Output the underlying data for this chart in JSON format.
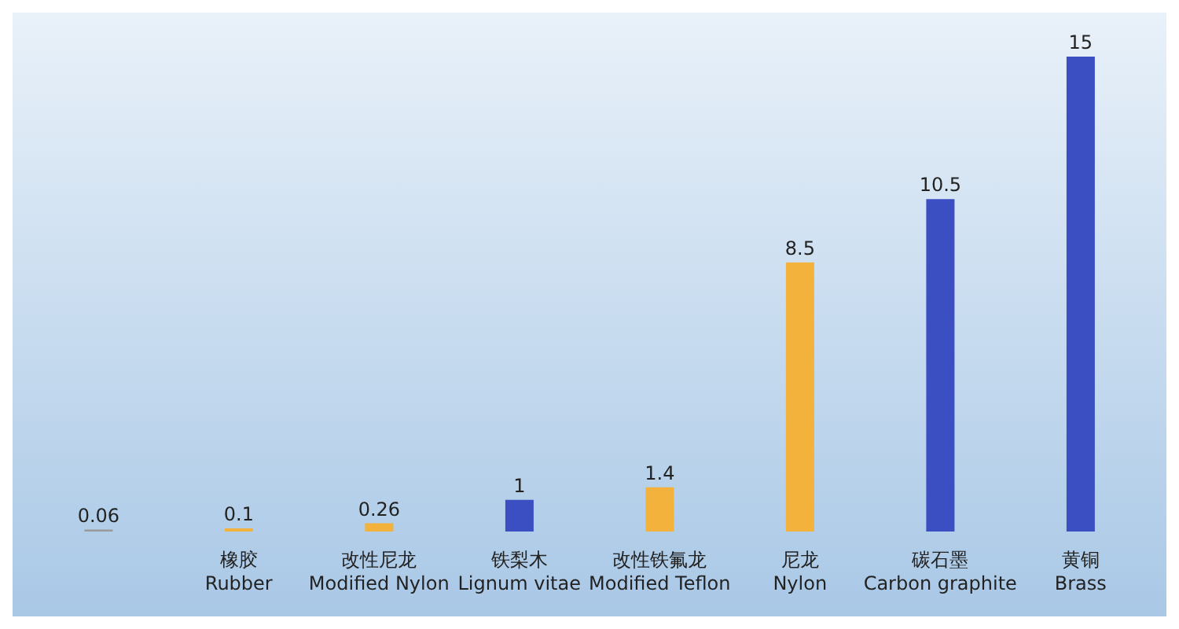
{
  "chart_data": {
    "type": "bar",
    "categories": [
      null,
      "橡胶\nRubber",
      "改性尼龙\nModified Nylon",
      "铁梨木\nLignum vitae",
      "改性铁氟龙\nModified Teflon",
      "尼龙\nNylon",
      "碳石墨\nCarbon graphite",
      "黄铜\nBrass"
    ],
    "values": [
      0.06,
      0.1,
      0.26,
      1,
      1.4,
      8.5,
      10.5,
      15
    ],
    "colors": [
      "#9a9a9a",
      "#f2b23c",
      "#f2b23c",
      "#3b4fc2",
      "#f2b23c",
      "#f2b23c",
      "#3b4fc2",
      "#3b4fc2"
    ],
    "ylim": [
      0,
      15
    ],
    "tick_labels": "x",
    "data_labels": true,
    "grid": false,
    "legend": false
  }
}
